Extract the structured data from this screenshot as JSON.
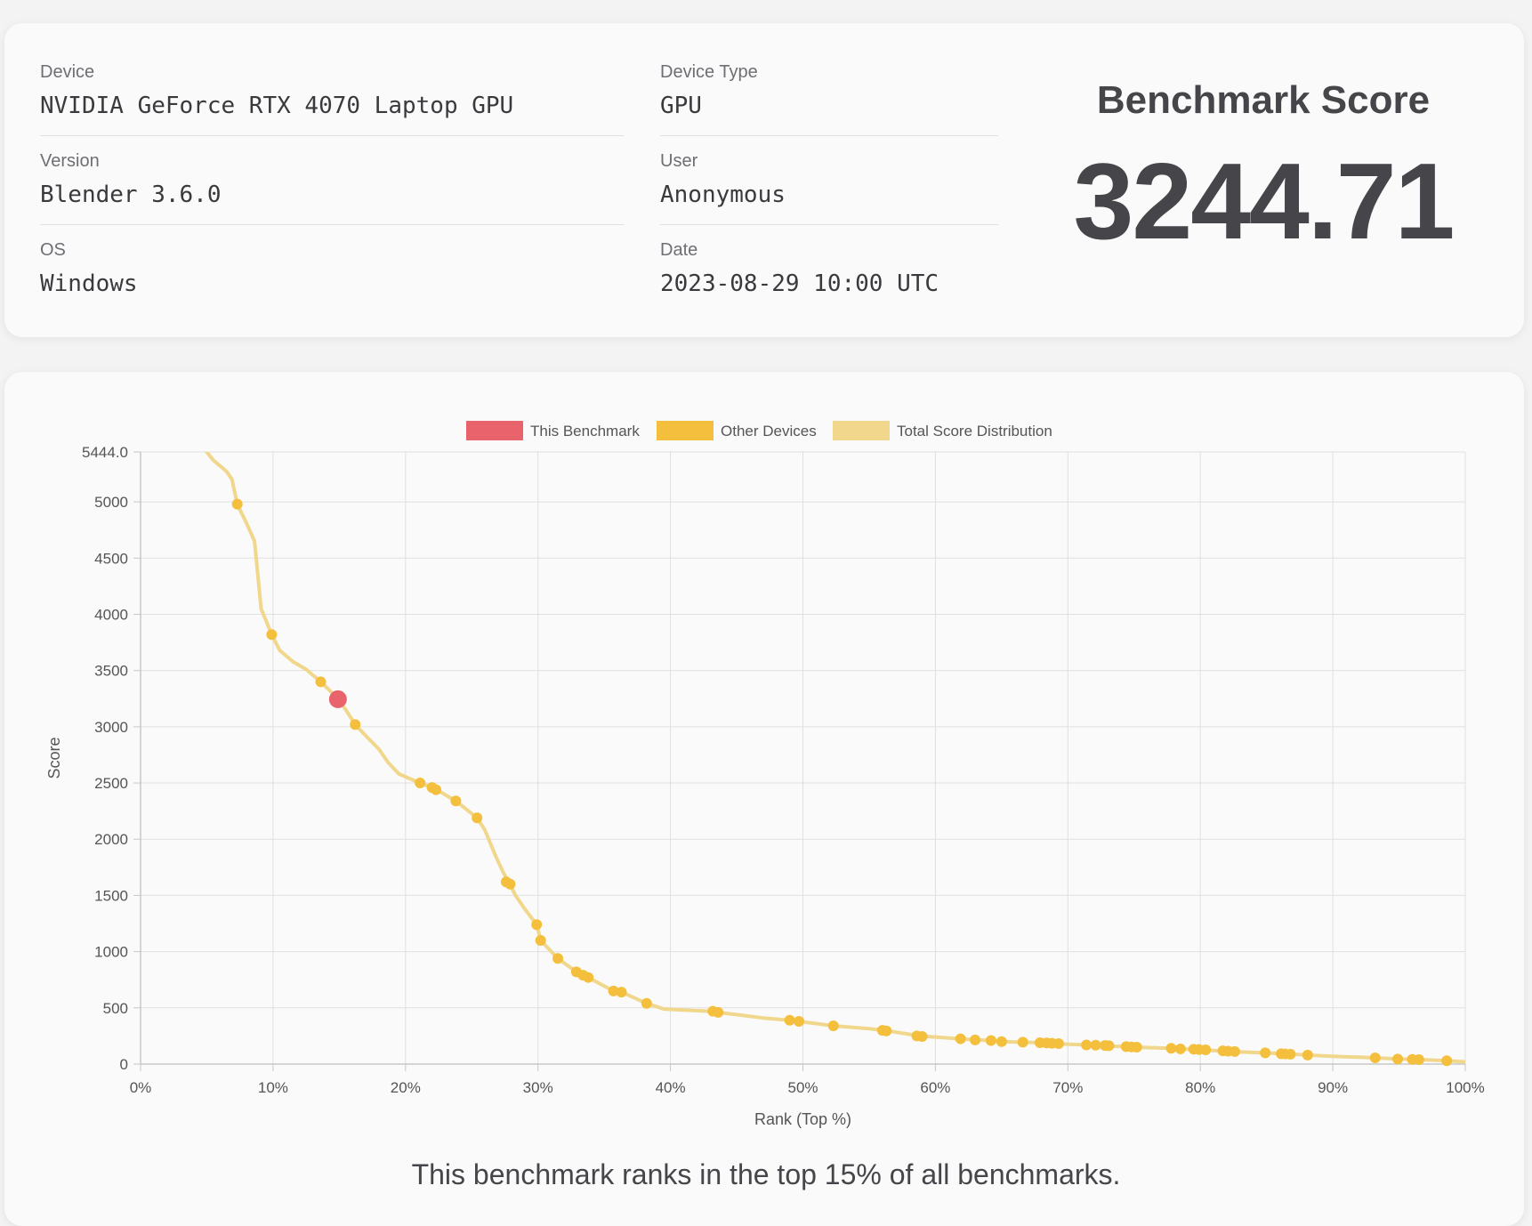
{
  "info": {
    "device": {
      "label": "Device",
      "value": "NVIDIA GeForce RTX 4070 Laptop GPU"
    },
    "version": {
      "label": "Version",
      "value": "Blender 3.6.0"
    },
    "os": {
      "label": "OS",
      "value": "Windows"
    },
    "device_type": {
      "label": "Device Type",
      "value": "GPU"
    },
    "user": {
      "label": "User",
      "value": "Anonymous"
    },
    "date": {
      "label": "Date",
      "value": "2023-08-29 10:00 UTC"
    }
  },
  "score": {
    "title": "Benchmark Score",
    "value": "3244.71"
  },
  "rank_text": "This benchmark ranks in the top 15% of all benchmarks.",
  "colors": {
    "this_benchmark": "#e8636b",
    "other_devices": "#f4bf3c",
    "distribution": "#f0d78c",
    "grid": "#e0e0e0",
    "axis": "#c7c7c7",
    "text": "#555555"
  },
  "chart_data": {
    "type": "scatter",
    "xlabel": "Rank (Top %)",
    "ylabel": "Score",
    "xlim": [
      0,
      100
    ],
    "ylim": [
      0,
      5444.0
    ],
    "x_ticks": [
      0,
      10,
      20,
      30,
      40,
      50,
      60,
      70,
      80,
      90,
      100
    ],
    "x_tick_labels": [
      "0%",
      "10%",
      "20%",
      "30%",
      "40%",
      "50%",
      "60%",
      "70%",
      "80%",
      "90%",
      "100%"
    ],
    "y_ticks": [
      0,
      500,
      1000,
      1500,
      2000,
      2500,
      3000,
      3500,
      4000,
      4500,
      5000,
      5444.0
    ],
    "y_tick_labels": [
      "0",
      "500",
      "1000",
      "1500",
      "2000",
      "2500",
      "3000",
      "3500",
      "4000",
      "4500",
      "5000",
      "5444.0"
    ],
    "grid": true,
    "legend_position": "top",
    "legend": [
      {
        "name": "This Benchmark",
        "color_key": "this_benchmark"
      },
      {
        "name": "Other Devices",
        "color_key": "other_devices"
      },
      {
        "name": "Total Score Distribution",
        "color_key": "distribution"
      }
    ],
    "series": [
      {
        "name": "Total Score Distribution",
        "kind": "line",
        "points": [
          [
            5.0,
            5444
          ],
          [
            5.5,
            5370
          ],
          [
            6.5,
            5270
          ],
          [
            6.9,
            5200
          ],
          [
            7.3,
            4980
          ],
          [
            8.0,
            4810
          ],
          [
            8.6,
            4650
          ],
          [
            9.1,
            4050
          ],
          [
            9.9,
            3820
          ],
          [
            10.5,
            3680
          ],
          [
            11.5,
            3580
          ],
          [
            12.5,
            3510
          ],
          [
            13.6,
            3400
          ],
          [
            14.3,
            3320
          ],
          [
            14.9,
            3245
          ],
          [
            15.5,
            3150
          ],
          [
            16.2,
            3020
          ],
          [
            17.0,
            2920
          ],
          [
            18.0,
            2800
          ],
          [
            18.7,
            2680
          ],
          [
            19.5,
            2580
          ],
          [
            21.1,
            2500
          ],
          [
            22.2,
            2450
          ],
          [
            23.8,
            2340
          ],
          [
            25.4,
            2190
          ],
          [
            26.0,
            2080
          ],
          [
            26.8,
            1850
          ],
          [
            27.4,
            1700
          ],
          [
            27.8,
            1620
          ],
          [
            28.3,
            1500
          ],
          [
            29.0,
            1380
          ],
          [
            29.9,
            1240
          ],
          [
            30.2,
            1100
          ],
          [
            31.5,
            940
          ],
          [
            32.9,
            820
          ],
          [
            33.3,
            790
          ],
          [
            33.8,
            770
          ],
          [
            35.7,
            650
          ],
          [
            36.3,
            640
          ],
          [
            38.2,
            540
          ],
          [
            39.5,
            490
          ],
          [
            41.0,
            480
          ],
          [
            43.0,
            470
          ],
          [
            43.5,
            460
          ],
          [
            45.0,
            440
          ],
          [
            47.0,
            410
          ],
          [
            49.0,
            390
          ],
          [
            49.7,
            380
          ],
          [
            52.3,
            340
          ],
          [
            55.0,
            315
          ],
          [
            56.2,
            300
          ],
          [
            58.8,
            250
          ],
          [
            61.9,
            225
          ],
          [
            63.0,
            215
          ],
          [
            64.2,
            210
          ],
          [
            65.0,
            200
          ],
          [
            66.6,
            195
          ],
          [
            67.9,
            190
          ],
          [
            68.5,
            185
          ],
          [
            69.3,
            180
          ],
          [
            71.4,
            170
          ],
          [
            72.1,
            165
          ],
          [
            72.9,
            160
          ],
          [
            74.4,
            155
          ],
          [
            75.1,
            150
          ],
          [
            77.8,
            140
          ],
          [
            78.5,
            135
          ],
          [
            79.6,
            130
          ],
          [
            80.4,
            125
          ],
          [
            81.8,
            115
          ],
          [
            82.5,
            110
          ],
          [
            84.9,
            100
          ],
          [
            86.6,
            90
          ],
          [
            88.1,
            80
          ],
          [
            90.0,
            70
          ],
          [
            93.2,
            55
          ],
          [
            94.9,
            45
          ],
          [
            96.4,
            40
          ],
          [
            98.6,
            30
          ],
          [
            100,
            20
          ]
        ]
      },
      {
        "name": "Other Devices",
        "kind": "points",
        "points": [
          [
            7.3,
            4980
          ],
          [
            9.9,
            3820
          ],
          [
            13.6,
            3400
          ],
          [
            16.2,
            3020
          ],
          [
            21.1,
            2500
          ],
          [
            22.0,
            2460
          ],
          [
            22.3,
            2440
          ],
          [
            23.8,
            2340
          ],
          [
            25.4,
            2190
          ],
          [
            27.6,
            1620
          ],
          [
            27.9,
            1600
          ],
          [
            29.9,
            1240
          ],
          [
            30.2,
            1100
          ],
          [
            31.5,
            940
          ],
          [
            32.9,
            820
          ],
          [
            33.4,
            790
          ],
          [
            33.8,
            770
          ],
          [
            35.7,
            650
          ],
          [
            36.3,
            640
          ],
          [
            38.2,
            540
          ],
          [
            43.2,
            470
          ],
          [
            43.6,
            460
          ],
          [
            49.0,
            390
          ],
          [
            49.7,
            380
          ],
          [
            52.3,
            340
          ],
          [
            56.0,
            300
          ],
          [
            56.3,
            295
          ],
          [
            58.6,
            250
          ],
          [
            59.0,
            245
          ],
          [
            61.9,
            225
          ],
          [
            63.0,
            215
          ],
          [
            64.2,
            210
          ],
          [
            65.0,
            200
          ],
          [
            66.6,
            195
          ],
          [
            67.9,
            190
          ],
          [
            68.4,
            188
          ],
          [
            68.8,
            185
          ],
          [
            69.3,
            182
          ],
          [
            71.4,
            170
          ],
          [
            72.1,
            168
          ],
          [
            72.8,
            165
          ],
          [
            73.1,
            163
          ],
          [
            74.4,
            155
          ],
          [
            74.8,
            152
          ],
          [
            75.2,
            150
          ],
          [
            77.8,
            140
          ],
          [
            78.5,
            135
          ],
          [
            79.5,
            132
          ],
          [
            79.9,
            130
          ],
          [
            80.4,
            127
          ],
          [
            81.7,
            118
          ],
          [
            82.1,
            115
          ],
          [
            82.6,
            112
          ],
          [
            84.9,
            100
          ],
          [
            86.1,
            92
          ],
          [
            86.4,
            90
          ],
          [
            86.8,
            88
          ],
          [
            88.1,
            80
          ],
          [
            93.2,
            55
          ],
          [
            94.9,
            45
          ],
          [
            96.0,
            42
          ],
          [
            96.5,
            40
          ],
          [
            98.6,
            30
          ]
        ]
      },
      {
        "name": "This Benchmark",
        "kind": "points",
        "points": [
          [
            14.9,
            3245
          ]
        ]
      }
    ]
  }
}
